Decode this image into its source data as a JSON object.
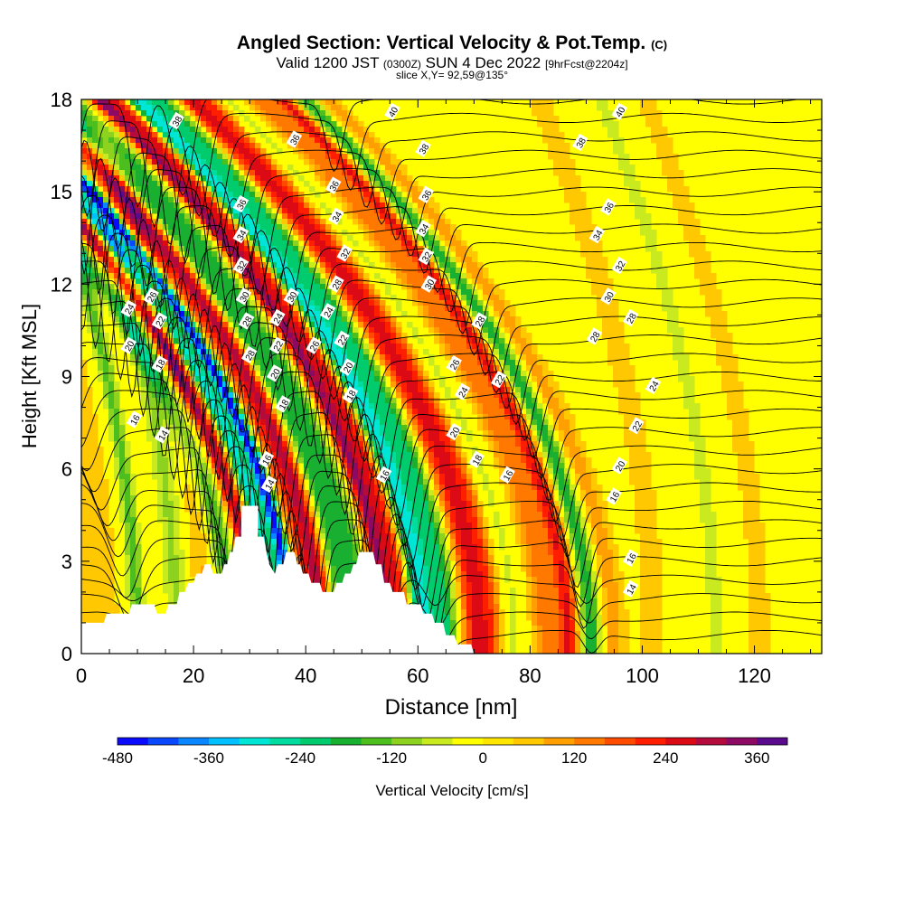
{
  "header": {
    "title": "Angled Section: Vertical Velocity & Pot.Temp.",
    "title_mark": "(C)",
    "valid_prefix": "Valid 1200 JST",
    "valid_zulu": "(0300Z)",
    "valid_date": "SUN 4 Dec 2022",
    "forecast": "[9hrFcst@2204z]",
    "slice": "slice X,Y= 92,59@135°"
  },
  "colors": {
    "background": "#ffffff",
    "terrain": "#ffffff",
    "contour": "#000000",
    "palette": [
      "#0a0aff",
      "#0a48ff",
      "#0a86ff",
      "#00c0ff",
      "#00e6d6",
      "#00dca0",
      "#00cc6e",
      "#19b032",
      "#4cbe1e",
      "#8cd21e",
      "#c8ea1e",
      "#ffff00",
      "#ffe600",
      "#ffc800",
      "#ffa000",
      "#ff7800",
      "#ff4b00",
      "#ff1e00",
      "#dc0a14",
      "#b40a3c",
      "#8c0a64",
      "#5a0a8c"
    ]
  },
  "chart_data": {
    "type": "heatmap",
    "title": "Angled Section: Vertical Velocity & Pot.Temp.",
    "xlabel": "Distance [nm]",
    "ylabel": "Height [Kft MSL]",
    "xlim": [
      0,
      132
    ],
    "ylim": [
      0,
      18
    ],
    "x_ticks": [
      "0",
      "20",
      "40",
      "60",
      "80",
      "100",
      "120"
    ],
    "x_tick_values": [
      0,
      20,
      40,
      60,
      80,
      100,
      120
    ],
    "y_ticks": [
      "0",
      "3",
      "6",
      "9",
      "12",
      "15",
      "18"
    ],
    "y_tick_values": [
      0,
      3,
      6,
      9,
      12,
      15,
      18
    ],
    "colorbar": {
      "label": "Vertical Velocity [cm/s]",
      "range": [
        -480,
        400
      ],
      "step": 40,
      "tick_labels": [
        "-480",
        "-360",
        "-240",
        "-120",
        "0",
        "120",
        "240",
        "360"
      ],
      "tick_values": [
        -480,
        -360,
        -240,
        -120,
        0,
        120,
        240,
        360
      ]
    },
    "bands": [
      {
        "x": 2,
        "w": 2.5,
        "v": 60
      },
      {
        "x": 6,
        "w": 2,
        "v": 30
      },
      {
        "x": 10,
        "w": 1.6,
        "v": -150
      },
      {
        "x": 13,
        "w": 2,
        "v": 40
      },
      {
        "x": 17,
        "w": 2.5,
        "v": -100
      },
      {
        "x": 22,
        "w": 2.5,
        "v": 80
      },
      {
        "x": 27,
        "w": 2.2,
        "v": -180
      },
      {
        "x": 31,
        "w": 1.6,
        "v": 300
      },
      {
        "x": 34.5,
        "w": 1.4,
        "v": -320
      },
      {
        "x": 37.5,
        "w": 1.3,
        "v": -480
      },
      {
        "x": 40.5,
        "w": 1.6,
        "v": 140
      },
      {
        "x": 43,
        "w": 1.8,
        "v": 280
      },
      {
        "x": 46.5,
        "w": 1.6,
        "v": -160
      },
      {
        "x": 49.5,
        "w": 2.2,
        "v": -200
      },
      {
        "x": 54.5,
        "w": 1.8,
        "v": 320
      },
      {
        "x": 57.5,
        "w": 1.6,
        "v": 220
      },
      {
        "x": 61,
        "w": 2.2,
        "v": -320
      },
      {
        "x": 65,
        "w": 2.2,
        "v": -220
      },
      {
        "x": 70,
        "w": 2.2,
        "v": 200
      },
      {
        "x": 73,
        "w": 2.2,
        "v": 180
      },
      {
        "x": 77,
        "w": 2.2,
        "v": -60
      },
      {
        "x": 83,
        "w": 2.8,
        "v": 130
      },
      {
        "x": 87,
        "w": 1.7,
        "v": 220
      },
      {
        "x": 91,
        "w": 1.7,
        "v": -200
      },
      {
        "x": 95,
        "w": 2.2,
        "v": 90
      },
      {
        "x": 102,
        "w": 3.5,
        "v": 40
      },
      {
        "x": 113,
        "w": 2.5,
        "v": -60
      },
      {
        "x": 121,
        "w": 3,
        "v": 40
      }
    ],
    "terrain": [
      [
        0,
        1.0
      ],
      [
        4,
        1.0
      ],
      [
        4.5,
        1.3
      ],
      [
        8.5,
        1.3
      ],
      [
        9,
        1.6
      ],
      [
        13,
        1.6
      ],
      [
        13.5,
        1.3
      ],
      [
        15,
        1.3
      ],
      [
        15.5,
        1.6
      ],
      [
        17,
        1.6
      ],
      [
        17.5,
        2.0
      ],
      [
        18.5,
        2.0
      ],
      [
        19,
        2.3
      ],
      [
        20,
        2.3
      ],
      [
        20.5,
        2.6
      ],
      [
        21.5,
        2.6
      ],
      [
        22,
        2.9
      ],
      [
        23,
        2.9
      ],
      [
        23.5,
        2.6
      ],
      [
        25,
        2.6
      ],
      [
        25.5,
        2.9
      ],
      [
        26,
        2.9
      ],
      [
        26.5,
        3.3
      ],
      [
        27,
        3.3
      ],
      [
        27.5,
        3.8
      ],
      [
        28.5,
        3.8
      ],
      [
        28.5,
        4.8
      ],
      [
        31.5,
        4.8
      ],
      [
        31.5,
        3.8
      ],
      [
        32.5,
        3.8
      ],
      [
        33,
        3.3
      ],
      [
        33.5,
        2.9
      ],
      [
        34.5,
        2.6
      ],
      [
        35,
        2.9
      ],
      [
        36,
        2.9
      ],
      [
        36.5,
        3.3
      ],
      [
        38,
        3.3
      ],
      [
        38.5,
        2.9
      ],
      [
        39,
        2.9
      ],
      [
        39.5,
        2.6
      ],
      [
        40.5,
        2.6
      ],
      [
        41,
        2.3
      ],
      [
        42.5,
        2.3
      ],
      [
        43,
        2.0
      ],
      [
        45,
        2.0
      ],
      [
        45.5,
        2.3
      ],
      [
        46.5,
        2.3
      ],
      [
        47,
        2.6
      ],
      [
        48,
        2.6
      ],
      [
        48.5,
        2.9
      ],
      [
        49,
        2.9
      ],
      [
        49.5,
        3.3
      ],
      [
        52,
        3.3
      ],
      [
        52.5,
        2.9
      ],
      [
        53.5,
        2.9
      ],
      [
        54,
        2.3
      ],
      [
        55,
        2.3
      ],
      [
        55.5,
        2.0
      ],
      [
        57.5,
        2.0
      ],
      [
        58,
        1.6
      ],
      [
        60.5,
        1.6
      ],
      [
        61,
        1.3
      ],
      [
        62.5,
        1.3
      ],
      [
        63,
        1.0
      ],
      [
        64.5,
        1.0
      ],
      [
        65,
        0.6
      ],
      [
        66.5,
        0.6
      ],
      [
        67,
        0.3
      ],
      [
        69.5,
        0.3
      ],
      [
        70,
        0.0
      ],
      [
        132,
        0.0
      ]
    ],
    "potential_temperature_contour_labels": [
      {
        "text": "38",
        "x": 17,
        "y": 17.3
      },
      {
        "text": "36",
        "x": 38,
        "y": 16.7
      },
      {
        "text": "40",
        "x": 55.5,
        "y": 17.6
      },
      {
        "text": "38",
        "x": 61,
        "y": 16.4
      },
      {
        "text": "38",
        "x": 89,
        "y": 16.6
      },
      {
        "text": "40",
        "x": 96,
        "y": 17.6
      },
      {
        "text": "36",
        "x": 28.5,
        "y": 14.6
      },
      {
        "text": "36",
        "x": 45,
        "y": 15.2
      },
      {
        "text": "36",
        "x": 61.5,
        "y": 14.9
      },
      {
        "text": "36",
        "x": 94,
        "y": 14.5
      },
      {
        "text": "34",
        "x": 28.5,
        "y": 13.6
      },
      {
        "text": "34",
        "x": 45.5,
        "y": 14.2
      },
      {
        "text": "34",
        "x": 61,
        "y": 13.8
      },
      {
        "text": "34",
        "x": 92,
        "y": 13.6
      },
      {
        "text": "32",
        "x": 28.5,
        "y": 12.6
      },
      {
        "text": "32",
        "x": 47,
        "y": 13.0
      },
      {
        "text": "32",
        "x": 61.5,
        "y": 12.9
      },
      {
        "text": "32",
        "x": 96,
        "y": 12.6
      },
      {
        "text": "26",
        "x": 12.5,
        "y": 11.6
      },
      {
        "text": "30",
        "x": 29,
        "y": 11.6
      },
      {
        "text": "30",
        "x": 37.5,
        "y": 11.6
      },
      {
        "text": "28",
        "x": 45.5,
        "y": 12.0
      },
      {
        "text": "30",
        "x": 62,
        "y": 12.0
      },
      {
        "text": "30",
        "x": 94,
        "y": 11.6
      },
      {
        "text": "24",
        "x": 8.5,
        "y": 11.2
      },
      {
        "text": "22",
        "x": 14,
        "y": 10.8
      },
      {
        "text": "28",
        "x": 29.5,
        "y": 10.8
      },
      {
        "text": "24",
        "x": 35,
        "y": 10.9
      },
      {
        "text": "24",
        "x": 44,
        "y": 11.1
      },
      {
        "text": "28",
        "x": 71,
        "y": 10.8
      },
      {
        "text": "28",
        "x": 98,
        "y": 10.9
      },
      {
        "text": "20",
        "x": 8.5,
        "y": 10.0
      },
      {
        "text": "22",
        "x": 35,
        "y": 10.0
      },
      {
        "text": "26",
        "x": 41.5,
        "y": 10.0
      },
      {
        "text": "28",
        "x": 30,
        "y": 9.7
      },
      {
        "text": "22",
        "x": 46.5,
        "y": 10.2
      },
      {
        "text": "28",
        "x": 91.5,
        "y": 10.3
      },
      {
        "text": "18",
        "x": 14,
        "y": 9.4
      },
      {
        "text": "20",
        "x": 34.5,
        "y": 9.1
      },
      {
        "text": "20",
        "x": 47.5,
        "y": 9.3
      },
      {
        "text": "26",
        "x": 66.5,
        "y": 9.4
      },
      {
        "text": "22",
        "x": 74.5,
        "y": 8.9
      },
      {
        "text": "18",
        "x": 36,
        "y": 8.1
      },
      {
        "text": "18",
        "x": 48,
        "y": 8.4
      },
      {
        "text": "24",
        "x": 68,
        "y": 8.5
      },
      {
        "text": "24",
        "x": 102,
        "y": 8.7
      },
      {
        "text": "16",
        "x": 9.5,
        "y": 7.6
      },
      {
        "text": "14",
        "x": 14.5,
        "y": 7.1
      },
      {
        "text": "20",
        "x": 66.5,
        "y": 7.2
      },
      {
        "text": "22",
        "x": 99,
        "y": 7.4
      },
      {
        "text": "16",
        "x": 33,
        "y": 6.3
      },
      {
        "text": "18",
        "x": 70.5,
        "y": 6.3
      },
      {
        "text": "20",
        "x": 96,
        "y": 6.1
      },
      {
        "text": "16",
        "x": 76,
        "y": 5.8
      },
      {
        "text": "16",
        "x": 54,
        "y": 5.8
      },
      {
        "text": "14",
        "x": 33.5,
        "y": 5.5
      },
      {
        "text": "16",
        "x": 95,
        "y": 5.1
      },
      {
        "text": "16",
        "x": 98,
        "y": 3.1
      },
      {
        "text": "14",
        "x": 98,
        "y": 2.1
      }
    ]
  }
}
